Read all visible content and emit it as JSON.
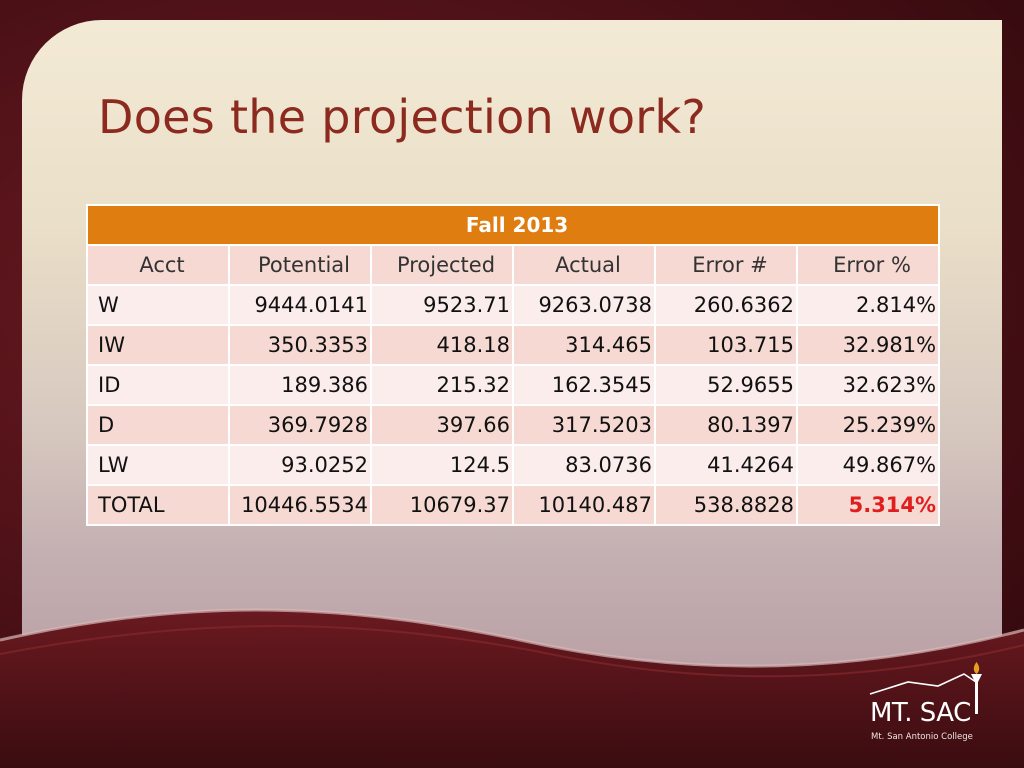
{
  "slide": {
    "title": "Does the projection work?"
  },
  "table": {
    "caption": "Fall 2013",
    "headers": [
      "Acct",
      "Potential",
      "Projected",
      "Actual",
      "Error #",
      "Error %"
    ],
    "rows": [
      [
        "W",
        "9444.0141",
        "9523.71",
        "9263.0738",
        "260.6362",
        "2.814%"
      ],
      [
        "IW",
        "350.3353",
        "418.18",
        "314.465",
        "103.715",
        "32.981%"
      ],
      [
        "ID",
        "189.386",
        "215.32",
        "162.3545",
        "52.9655",
        "32.623%"
      ],
      [
        "D",
        "369.7928",
        "397.66",
        "317.5203",
        "80.1397",
        "25.239%"
      ],
      [
        "LW",
        "93.0252",
        "124.5",
        "83.0736",
        "41.4264",
        "49.867%"
      ],
      [
        "TOTAL",
        "10446.5534",
        "10679.37",
        "10140.487",
        "538.8828",
        "5.314%"
      ]
    ],
    "highlight_color": "#e01e1e",
    "caption_color": "#e07d10"
  },
  "logo": {
    "name": "MT. SAC",
    "subtitle": "Mt. San Antonio College"
  },
  "colors": {
    "background": "#4a1016",
    "title": "#8c2a1f"
  }
}
